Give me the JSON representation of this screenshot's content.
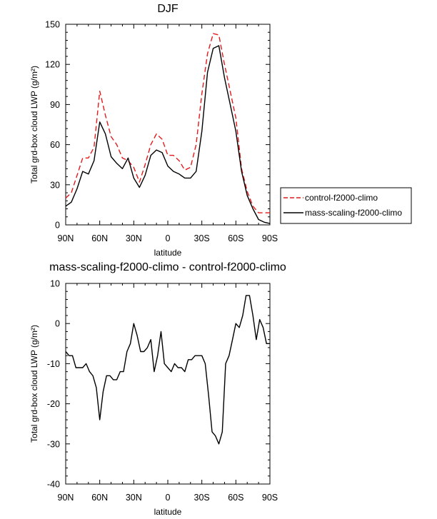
{
  "chart_data": [
    {
      "type": "line",
      "title": "DJF",
      "xlabel": "latitude",
      "ylabel": "Total grd-box cloud LWP (g/m²)",
      "ylim": [
        0,
        150
      ],
      "yticks": [
        0,
        30,
        60,
        90,
        120,
        150
      ],
      "xticks": [
        "90N",
        "60N",
        "30N",
        "0",
        "30S",
        "60S",
        "90S"
      ],
      "x": [
        90,
        85,
        80,
        75,
        70,
        65,
        60,
        55,
        50,
        45,
        40,
        35,
        30,
        25,
        20,
        15,
        10,
        5,
        0,
        -5,
        -10,
        -15,
        -20,
        -25,
        -30,
        -35,
        -40,
        -45,
        -50,
        -55,
        -60,
        -65,
        -70,
        -75,
        -80,
        -85,
        -90
      ],
      "series": [
        {
          "name": "control-f2000-climo",
          "color": "#e31a1c",
          "dash": true,
          "values": [
            20,
            24,
            37,
            50,
            50,
            58,
            100,
            82,
            66,
            60,
            50,
            48,
            43,
            32,
            45,
            60,
            68,
            64,
            52,
            52,
            48,
            41,
            43,
            60,
            98,
            128,
            143,
            142,
            120,
            100,
            80,
            42,
            25,
            14,
            9,
            9,
            9
          ]
        },
        {
          "name": "mass-scaling-f2000-climo",
          "color": "#000000",
          "dash": false,
          "values": [
            14,
            17,
            27,
            40,
            38,
            48,
            77,
            68,
            51,
            46,
            42,
            50,
            35,
            28,
            37,
            52,
            56,
            54,
            44,
            40,
            38,
            35,
            35,
            40,
            70,
            114,
            132,
            134,
            110,
            90,
            70,
            40,
            22,
            12,
            4,
            2,
            1
          ]
        }
      ],
      "legend": "right"
    },
    {
      "type": "line",
      "title": "mass-scaling-f2000-climo - control-f2000-climo",
      "xlabel": "latitude",
      "ylabel": "Total grd-box cloud LWP (g/m²)",
      "ylim": [
        -40,
        10
      ],
      "yticks": [
        -40,
        -30,
        -20,
        -10,
        0,
        10
      ],
      "xticks": [
        "90N",
        "60N",
        "30N",
        "0",
        "30S",
        "60S",
        "90S"
      ],
      "x": [
        90,
        87,
        84,
        81,
        78,
        75,
        72,
        69,
        66,
        63,
        60,
        57,
        54,
        51,
        48,
        45,
        42,
        39,
        36,
        33,
        30,
        27,
        24,
        21,
        18,
        15,
        12,
        9,
        6,
        3,
        0,
        -3,
        -6,
        -9,
        -12,
        -15,
        -18,
        -21,
        -24,
        -27,
        -30,
        -33,
        -36,
        -39,
        -42,
        -45,
        -48,
        -51,
        -54,
        -57,
        -60,
        -63,
        -66,
        -69,
        -72,
        -75,
        -78,
        -81,
        -84,
        -87,
        -90
      ],
      "series": [
        {
          "name": "",
          "color": "#000000",
          "dash": false,
          "values": [
            -7,
            -8,
            -8,
            -11,
            -11,
            -11,
            -10,
            -12,
            -13,
            -16,
            -24,
            -17,
            -13,
            -13,
            -14,
            -14,
            -12,
            -12,
            -7,
            -5,
            0,
            -3,
            -7,
            -7,
            -6,
            -4,
            -12,
            -8,
            -2,
            -10,
            -11,
            -12,
            -10,
            -11,
            -11,
            -12,
            -9,
            -9,
            -8,
            -8,
            -8,
            -10,
            -18,
            -27,
            -28,
            -30,
            -27,
            -10,
            -8,
            -4,
            0,
            -1,
            2,
            7,
            7,
            2,
            -4,
            1,
            -1,
            -5,
            -5
          ]
        }
      ]
    }
  ]
}
